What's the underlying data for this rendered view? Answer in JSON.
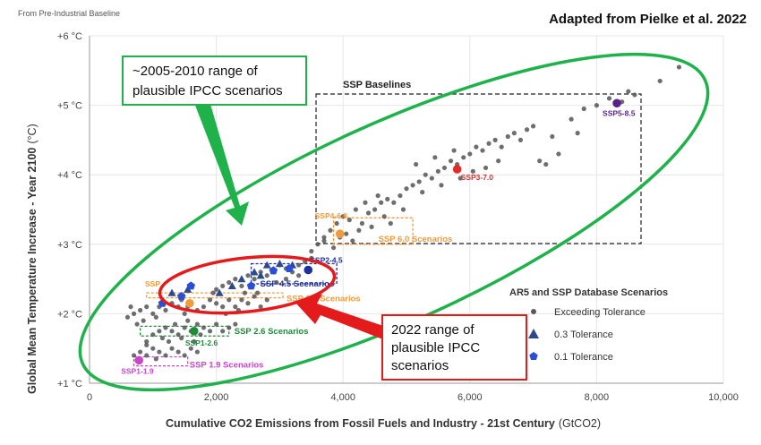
{
  "header": {
    "baseline_note": "From Pre-Industrial Baseline",
    "credit": "Adapted from Pielke et al. 2022"
  },
  "chart_data": {
    "type": "scatter",
    "xlabel": "Cumulative CO2 Emissions from Fossil Fuels and Industry - 21st Century",
    "xlabel_unit": "(GtCO2)",
    "ylabel": "Global Mean Temperature Increase - Year 2100",
    "ylabel_unit": "(°C)",
    "xlim": [
      0,
      10000
    ],
    "ylim": [
      1,
      6
    ],
    "x_ticks": [
      {
        "v": 0,
        "label": "0"
      },
      {
        "v": 2000,
        "label": "2,000"
      },
      {
        "v": 4000,
        "label": "4,000"
      },
      {
        "v": 6000,
        "label": "6,000"
      },
      {
        "v": 8000,
        "label": "8,000"
      },
      {
        "v": 10000,
        "label": "10,000"
      }
    ],
    "y_ticks": [
      {
        "v": 1,
        "label": "+1 °C"
      },
      {
        "v": 2,
        "label": "+2 °C"
      },
      {
        "v": 3,
        "label": "+3 °C"
      },
      {
        "v": 4,
        "label": "+4 °C"
      },
      {
        "v": 5,
        "label": "+5 °C"
      },
      {
        "v": 6,
        "label": "+6 °C"
      }
    ],
    "grid": true,
    "legend": {
      "title": "AR5 and SSP Database Scenarios",
      "position": "bottom-right",
      "items": [
        {
          "label": "Exceeding Tolerance",
          "marker": "circle",
          "color": "#5a5a5a"
        },
        {
          "label": "0.3 Tolerance",
          "marker": "triangle",
          "color": "#2c4a8a"
        },
        {
          "label": "0.1 Tolerance",
          "marker": "pentagon",
          "color": "#2a4fd6"
        }
      ]
    },
    "series": [
      {
        "name": "Exceeding Tolerance",
        "color": "#555555",
        "points": [
          [
            700,
            1.4
          ],
          [
            800,
            1.45
          ],
          [
            900,
            1.4
          ],
          [
            1000,
            1.5
          ],
          [
            1100,
            1.45
          ],
          [
            1200,
            1.4
          ],
          [
            1300,
            1.5
          ],
          [
            1400,
            1.45
          ],
          [
            1500,
            1.4
          ],
          [
            1600,
            1.5
          ],
          [
            1700,
            1.45
          ],
          [
            900,
            1.55
          ],
          [
            1050,
            1.35
          ],
          [
            900,
            1.6
          ],
          [
            1000,
            1.7
          ],
          [
            1100,
            1.75
          ],
          [
            1150,
            1.65
          ],
          [
            1200,
            1.8
          ],
          [
            1300,
            1.75
          ],
          [
            1350,
            1.85
          ],
          [
            1400,
            1.7
          ],
          [
            1500,
            1.8
          ],
          [
            1550,
            1.9
          ],
          [
            1600,
            1.75
          ],
          [
            1700,
            1.85
          ],
          [
            1750,
            1.7
          ],
          [
            1800,
            1.8
          ],
          [
            1900,
            1.75
          ],
          [
            2000,
            1.85
          ],
          [
            2100,
            1.75
          ],
          [
            2200,
            1.8
          ],
          [
            2300,
            1.85
          ],
          [
            1250,
            1.6
          ],
          [
            1450,
            1.65
          ],
          [
            1650,
            1.6
          ],
          [
            700,
            2.0
          ],
          [
            800,
            2.05
          ],
          [
            900,
            2.1
          ],
          [
            1000,
            2.0
          ],
          [
            1050,
            1.95
          ],
          [
            1100,
            2.1
          ],
          [
            1200,
            2.05
          ],
          [
            1300,
            2.15
          ],
          [
            1400,
            2.1
          ],
          [
            1450,
            2.2
          ],
          [
            1500,
            2.0
          ],
          [
            1550,
            2.1
          ],
          [
            1600,
            2.15
          ],
          [
            1700,
            2.05
          ],
          [
            1800,
            2.1
          ],
          [
            1900,
            2.2
          ],
          [
            2000,
            2.15
          ],
          [
            2100,
            2.1
          ],
          [
            2200,
            2.2
          ],
          [
            2300,
            2.1
          ],
          [
            2400,
            2.2
          ],
          [
            2500,
            2.15
          ],
          [
            2600,
            2.25
          ],
          [
            2700,
            2.1
          ],
          [
            2800,
            2.2
          ],
          [
            1950,
            2.3
          ],
          [
            2150,
            2.0
          ],
          [
            2350,
            2.05
          ],
          [
            2450,
            2.3
          ],
          [
            600,
            1.95
          ],
          [
            650,
            2.1
          ],
          [
            750,
            1.85
          ],
          [
            850,
            1.9
          ],
          [
            2000,
            2.35
          ],
          [
            2100,
            2.4
          ],
          [
            2200,
            2.45
          ],
          [
            2300,
            2.5
          ],
          [
            2400,
            2.4
          ],
          [
            2500,
            2.55
          ],
          [
            2600,
            2.5
          ],
          [
            2700,
            2.6
          ],
          [
            2800,
            2.55
          ],
          [
            2900,
            2.6
          ],
          [
            3000,
            2.7
          ],
          [
            3100,
            2.65
          ],
          [
            3200,
            2.6
          ],
          [
            3300,
            2.7
          ],
          [
            3400,
            2.75
          ],
          [
            3500,
            2.8
          ],
          [
            3100,
            2.5
          ],
          [
            3300,
            2.55
          ],
          [
            2950,
            2.45
          ],
          [
            2650,
            2.3
          ],
          [
            3500,
            2.9
          ],
          [
            3600,
            3.0
          ],
          [
            3700,
            3.1
          ],
          [
            3800,
            3.2
          ],
          [
            3900,
            3.3
          ],
          [
            4000,
            3.4
          ],
          [
            4100,
            3.35
          ],
          [
            4200,
            3.5
          ],
          [
            4300,
            3.3
          ],
          [
            4400,
            3.45
          ],
          [
            4500,
            3.5
          ],
          [
            4600,
            3.6
          ],
          [
            4700,
            3.65
          ],
          [
            4800,
            3.6
          ],
          [
            4900,
            3.7
          ],
          [
            5000,
            3.8
          ],
          [
            3700,
            3.05
          ],
          [
            3850,
            2.95
          ],
          [
            4050,
            3.15
          ],
          [
            4250,
            3.2
          ],
          [
            4450,
            3.25
          ],
          [
            4650,
            3.4
          ],
          [
            4150,
            3.05
          ],
          [
            3950,
            3.1
          ],
          [
            4350,
            3.6
          ],
          [
            4550,
            3.7
          ],
          [
            4750,
            3.3
          ],
          [
            4950,
            3.5
          ],
          [
            5100,
            3.85
          ],
          [
            5200,
            3.9
          ],
          [
            5300,
            4.0
          ],
          [
            5400,
            3.95
          ],
          [
            5500,
            4.05
          ],
          [
            5600,
            4.1
          ],
          [
            5700,
            4.2
          ],
          [
            5800,
            4.15
          ],
          [
            5900,
            4.25
          ],
          [
            6000,
            4.3
          ],
          [
            6100,
            4.4
          ],
          [
            6200,
            4.35
          ],
          [
            6300,
            4.45
          ],
          [
            6400,
            4.5
          ],
          [
            6500,
            4.4
          ],
          [
            6600,
            4.55
          ],
          [
            5250,
            3.75
          ],
          [
            5550,
            3.85
          ],
          [
            5850,
            3.95
          ],
          [
            6050,
            4.05
          ],
          [
            6250,
            4.1
          ],
          [
            6450,
            4.2
          ],
          [
            5150,
            4.15
          ],
          [
            5450,
            4.25
          ],
          [
            5750,
            4.35
          ],
          [
            6700,
            4.6
          ],
          [
            6800,
            4.5
          ],
          [
            6900,
            4.65
          ],
          [
            7000,
            4.7
          ],
          [
            7100,
            4.2
          ],
          [
            7200,
            4.15
          ],
          [
            7400,
            4.3
          ],
          [
            7600,
            4.8
          ],
          [
            7800,
            4.95
          ],
          [
            8000,
            5.0
          ],
          [
            8200,
            5.1
          ],
          [
            8400,
            5.05
          ],
          [
            8500,
            5.2
          ],
          [
            8600,
            5.15
          ],
          [
            9000,
            5.35
          ],
          [
            9300,
            5.55
          ],
          [
            7300,
            4.55
          ],
          [
            7700,
            4.6
          ]
        ]
      },
      {
        "name": "0.3 Tolerance",
        "color": "#2c4a8a",
        "points": [
          [
            1300,
            2.3
          ],
          [
            1550,
            2.35
          ],
          [
            2050,
            2.3
          ],
          [
            2250,
            2.4
          ],
          [
            2400,
            2.5
          ],
          [
            2600,
            2.6
          ],
          [
            2800,
            2.7
          ],
          [
            3000,
            2.72
          ],
          [
            3200,
            2.7
          ],
          [
            2700,
            2.55
          ]
        ]
      },
      {
        "name": "0.1 Tolerance",
        "color": "#2a4fd6",
        "points": [
          [
            1150,
            2.15
          ],
          [
            1450,
            2.25
          ],
          [
            1600,
            2.4
          ],
          [
            2550,
            2.4
          ],
          [
            2900,
            2.62
          ],
          [
            3150,
            2.65
          ]
        ]
      }
    ],
    "highlight_points": [
      {
        "label": "SSP1-1.9",
        "x": 780,
        "y": 1.33,
        "color": "#cc44cc"
      },
      {
        "label": "SSP1-2.6",
        "x": 1650,
        "y": 1.75,
        "color": "#1f8a3b"
      },
      {
        "label": "SSP2-4.5",
        "x": 3450,
        "y": 2.63,
        "color": "#1e2f9e"
      },
      {
        "label": "SSP4-6.0",
        "x": 3950,
        "y": 3.15,
        "color": "#f39a3b"
      },
      {
        "label": "SSP3-7.0",
        "x": 5800,
        "y": 4.08,
        "color": "#e32b2b"
      },
      {
        "label": "SSP5-8.5",
        "x": 8320,
        "y": 5.03,
        "color": "#5b1f8c"
      },
      {
        "label": "",
        "x": 1580,
        "y": 2.15,
        "color": "#f39a3b"
      }
    ],
    "scenario_ranges": [
      {
        "label": "SSP 1.9 Scenarios",
        "x0": 700,
        "x1": 1550,
        "y0": 1.25,
        "y1": 1.38,
        "color": "#cc44cc"
      },
      {
        "label": "SSP 2.6 Scenarios",
        "x0": 800,
        "x1": 2200,
        "y0": 1.68,
        "y1": 1.82,
        "color": "#1f8a3b"
      },
      {
        "label": "SSP 4.5 Scenarios",
        "x0": 2550,
        "x1": 3900,
        "y0": 2.43,
        "y1": 2.72,
        "color": "#1e2f9e"
      },
      {
        "label": "SSP 6.0 Scenarios",
        "x0": 3850,
        "x1": 5100,
        "y0": 3.0,
        "y1": 3.38,
        "color": "#f39a3b"
      },
      {
        "label": "SSP 3.4 Scenarios",
        "x0": 900,
        "x1": 3050,
        "y0": 2.23,
        "y1": 2.3,
        "color": "#f39a3b"
      }
    ],
    "annotations": {
      "ssp_baselines": "SSP Baselines",
      "partial_label": "SSP"
    }
  },
  "callouts": {
    "old_range": "~2005-2010 range of plausible IPCC scenarios",
    "old_range_lines": [
      "~2005-2010 range of",
      "plausible IPCC scenarios"
    ],
    "new_range": "2022 range of plausible IPCC scenarios",
    "new_range_lines": [
      "2022 range of",
      "plausible IPCC",
      "scenarios"
    ]
  },
  "colors": {
    "green": "#1fb24a",
    "red": "#e31b1b",
    "gray_point": "#555555"
  }
}
